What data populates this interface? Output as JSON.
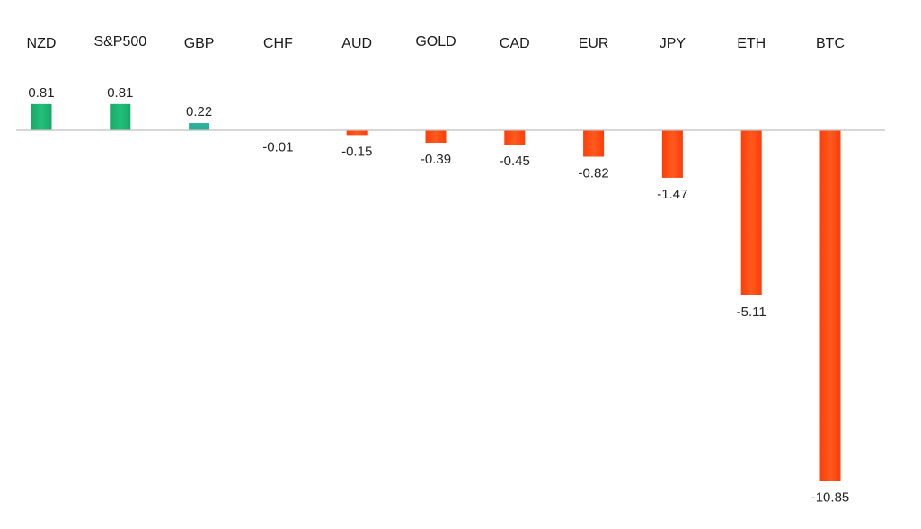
{
  "chart_data": {
    "type": "bar",
    "title": "",
    "xlabel": "",
    "ylabel": "",
    "categories": [
      "NZD",
      "S&P500",
      "GBP",
      "CHF",
      "AUD",
      "GOLD",
      "CAD",
      "EUR",
      "JPY",
      "ETH",
      "BTC"
    ],
    "values": [
      0.81,
      0.81,
      0.22,
      -0.01,
      -0.15,
      -0.39,
      -0.45,
      -0.82,
      -1.47,
      -5.11,
      -10.85
    ],
    "value_labels": [
      "0.81",
      "0.81",
      "0.22",
      "-0.01",
      "-0.15",
      "-0.39",
      "-0.45",
      "-0.82",
      "-1.47",
      "-5.11",
      "-10.85"
    ],
    "ylim": [
      -11.1,
      0.9
    ],
    "grid": false,
    "legend": "none",
    "colors": {
      "positive": "#1aaa6b",
      "positive_small": "#2bb09a",
      "negative": "#ff4a10",
      "axis": "#bfbfbf"
    }
  }
}
